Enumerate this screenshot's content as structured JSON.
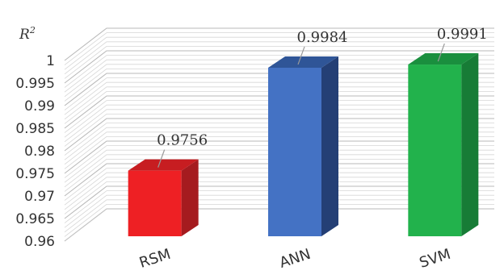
{
  "chart_data": {
    "type": "bar",
    "style": "3d-column",
    "ylabel": "R²",
    "ylabel_main": "R",
    "ylabel_sup": "2",
    "ylim": [
      0.96,
      1.0
    ],
    "yticks": [
      0.96,
      0.965,
      0.97,
      0.975,
      0.98,
      0.985,
      0.99,
      0.995,
      1
    ],
    "ytick_labels": [
      "0.96",
      "0.965",
      "0.97",
      "0.975",
      "0.98",
      "0.985",
      "0.99",
      "0.995",
      "1"
    ],
    "categories": [
      "RSM",
      "ANN",
      "SVM"
    ],
    "values": [
      0.9756,
      0.9984,
      0.9991
    ],
    "data_labels": [
      "0.9756",
      "0.9984",
      "0.9991"
    ],
    "colors": [
      "#ee2024",
      "#4472c4",
      "#22b24c"
    ],
    "side_colors": [
      "#a51b1f",
      "#243f75",
      "#177c36"
    ],
    "top_colors": [
      "#c71d21",
      "#2f5597",
      "#1a8f3e"
    ],
    "grid": true
  }
}
